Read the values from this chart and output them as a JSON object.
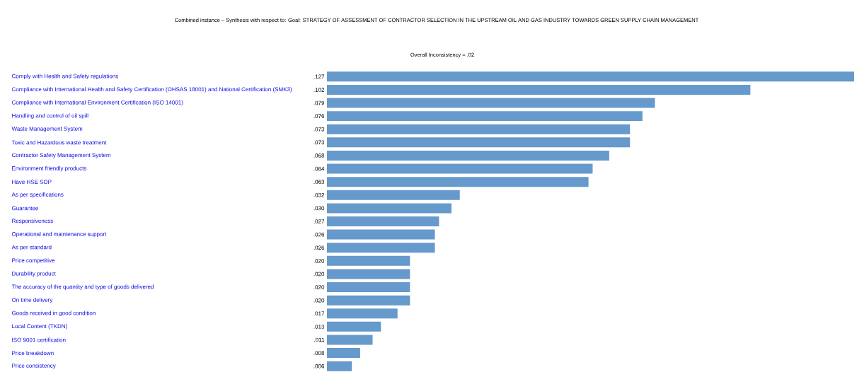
{
  "chart_data": {
    "type": "bar",
    "orientation": "horizontal",
    "title": "Combined instance – Synthesis with respect to: Goal: STRATEGY OF ASSESSMENT OF CONTRACTOR SELECTION IN THE UPSTREAM OIL AND GAS INDUSTRY TOWARDS GREEN SUPPLY CHAIN MANAGEMENT",
    "subtitle": "Overall Inconsistency = .02",
    "categories": [
      "Comply with Health and Safety regulations",
      "Compliance with International Health and Safety Certification (OHSAS 18001) and National Certification (SMK3)",
      "Compliance with International Environment Certification (ISO 14001)",
      "Handling and control of oil spill",
      "Waste Management System",
      "Toxic and Hazardous waste treatment",
      "Contractor Safety Management System",
      "Environment friendly products",
      "Have HSE SOP",
      "As per specifications",
      "Guarantee",
      "Responsiveness",
      "Operational and maintenance support",
      "As per standard",
      "Price competitive",
      "Durability product",
      "The accuracy of the quantity and type of goods delivered",
      "On time delivery",
      "Goods received in good condition",
      "Local Content (TKDN)",
      "ISO 9001 certification",
      "Price breakdown",
      "Price consistency"
    ],
    "values": [
      0.127,
      0.102,
      0.079,
      0.076,
      0.073,
      0.073,
      0.068,
      0.064,
      0.063,
      0.032,
      0.03,
      0.027,
      0.026,
      0.026,
      0.02,
      0.02,
      0.02,
      0.02,
      0.017,
      0.013,
      0.011,
      0.008,
      0.006
    ],
    "value_labels": [
      ".127",
      ".102",
      ".079",
      ".076",
      ".073",
      ".073",
      ".068",
      ".064",
      ".063",
      ".032",
      ".030",
      ".027",
      ".026",
      ".026",
      ".020",
      ".020",
      ".020",
      ".020",
      ".017",
      ".013",
      ".011",
      ".008",
      ".006"
    ],
    "color": "#6699cc"
  }
}
